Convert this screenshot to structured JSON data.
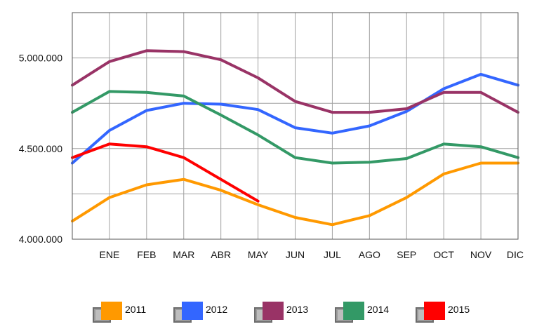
{
  "chart_data": {
    "type": "line",
    "categories": [
      "",
      "ENE",
      "FEB",
      "MAR",
      "ABR",
      "MAY",
      "JUN",
      "JUL",
      "AGO",
      "SEP",
      "OCT",
      "NOV",
      "DIC"
    ],
    "y_ticks": [
      "4.000.000",
      "4.500.000",
      "5.000.000"
    ],
    "y_tick_values": [
      4000000,
      4500000,
      5000000
    ],
    "ylim": [
      4000000,
      5250000
    ],
    "grid": true,
    "legend_position": "bottom",
    "series": [
      {
        "name": "2011",
        "color": "#FF9900",
        "values": [
          4100000,
          4230000,
          4300000,
          4330000,
          4270000,
          4190000,
          4120000,
          4080000,
          4130000,
          4230000,
          4360000,
          4420000,
          4420000
        ]
      },
      {
        "name": "2012",
        "color": "#3366FF",
        "values": [
          4420000,
          4600000,
          4710000,
          4750000,
          4745000,
          4715000,
          4615000,
          4585000,
          4625000,
          4705000,
          4830000,
          4910000,
          4850000
        ]
      },
      {
        "name": "2013",
        "color": "#993366",
        "values": [
          4850000,
          4980000,
          5040000,
          5035000,
          4990000,
          4890000,
          4760000,
          4700000,
          4700000,
          4720000,
          4810000,
          4810000,
          4700000
        ]
      },
      {
        "name": "2014",
        "color": "#339966",
        "values": [
          4700000,
          4815000,
          4810000,
          4790000,
          4685000,
          4575000,
          4450000,
          4420000,
          4425000,
          4445000,
          4525000,
          4510000,
          4450000
        ]
      },
      {
        "name": "2015",
        "color": "#FF0000",
        "values": [
          4450000,
          4525000,
          4510000,
          4450000,
          4330000,
          4210000,
          null,
          null,
          null,
          null,
          null,
          null,
          null
        ]
      }
    ]
  }
}
